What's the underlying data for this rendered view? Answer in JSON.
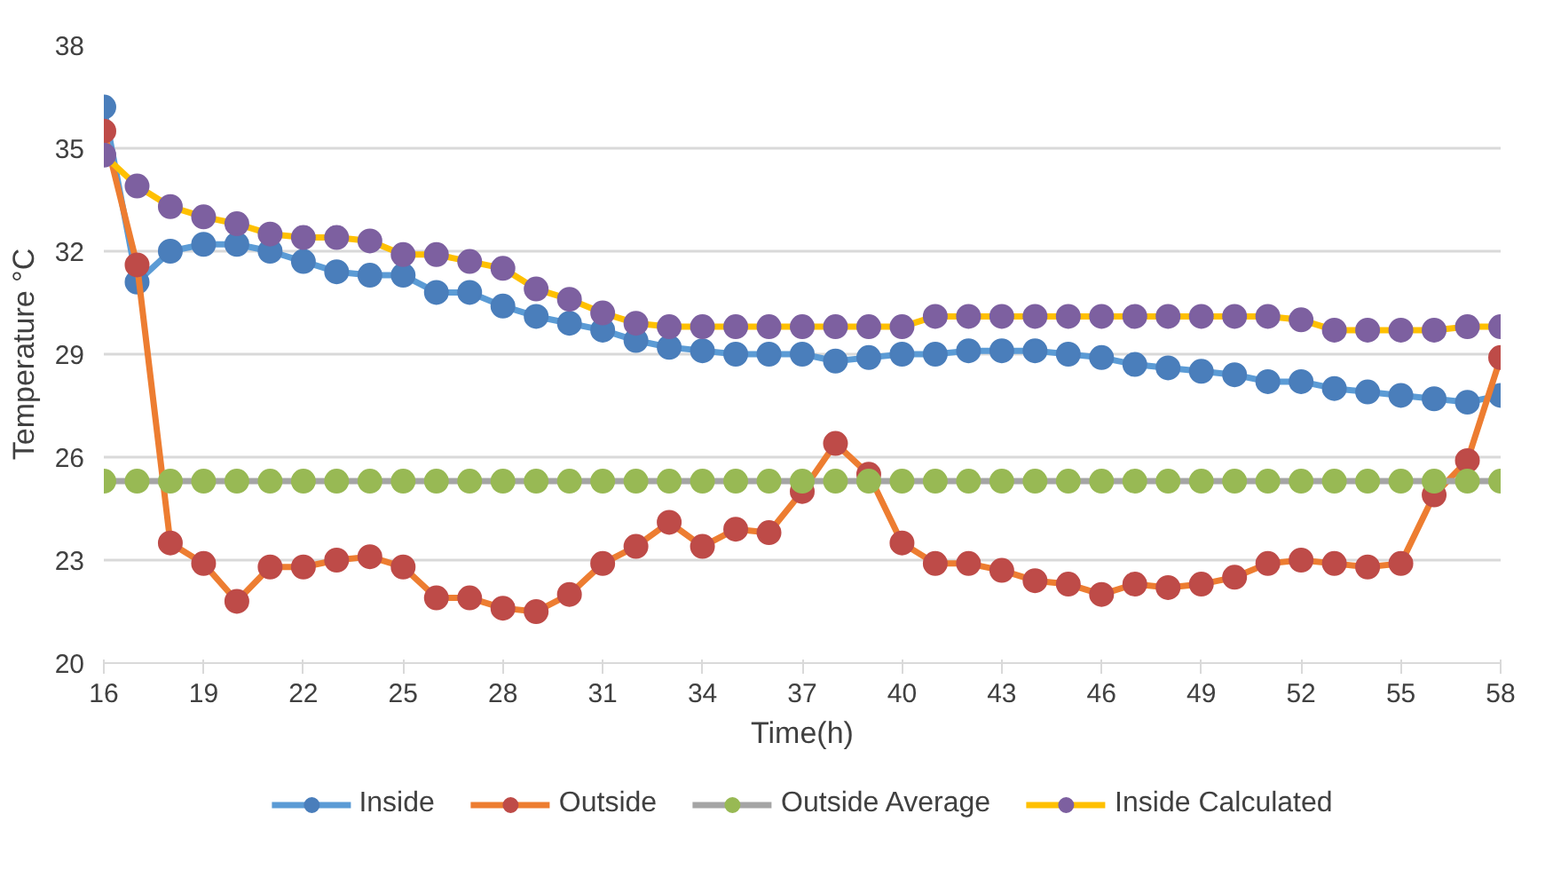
{
  "chart_data": {
    "type": "line",
    "xlabel": "Time(h)",
    "ylabel": "Temperature °C",
    "x": [
      16,
      17,
      18,
      19,
      20,
      21,
      22,
      23,
      24,
      25,
      26,
      27,
      28,
      29,
      30,
      31,
      32,
      33,
      34,
      35,
      36,
      37,
      38,
      39,
      40,
      41,
      42,
      43,
      44,
      45,
      46,
      47,
      48,
      49,
      50,
      51,
      52,
      53,
      54,
      55,
      56,
      57,
      58
    ],
    "xlim": [
      16,
      58
    ],
    "xticks": [
      16,
      19,
      22,
      25,
      28,
      31,
      34,
      37,
      40,
      43,
      46,
      49,
      52,
      55,
      58
    ],
    "ylim": [
      20,
      38
    ],
    "yticks": [
      20,
      23,
      26,
      29,
      32,
      35,
      38
    ],
    "grid": "y",
    "legend": "bottom",
    "marker": "circle",
    "line_style": "solid",
    "series": [
      {
        "name": "Inside",
        "color": "#5b9bd5",
        "colors": [
          "#4a7ebb",
          "#4a7ebb",
          "#4a7ebb",
          "#4a7ebb",
          "#4a7ebb",
          "#4a7ebb",
          "#4a7ebb",
          "#4a7ebb",
          "#4a7ebb",
          "#4a7ebb",
          "#4a7ebb",
          "#4a7ebb",
          "#4a7ebb",
          "#4a7ebb",
          "#4a7ebb",
          "#4a7ebb",
          "#4a7ebb",
          "#4a7ebb",
          "#4a7ebb",
          "#4a7ebb",
          "#4a7ebb",
          "#4a7ebb",
          "#4a7ebb",
          "#4a7ebb",
          "#4a7ebb",
          "#4a7ebb",
          "#4a7ebb",
          "#4a7ebb",
          "#4a7ebb",
          "#4a7ebb",
          "#4a7ebb",
          "#4a7ebb",
          "#4a7ebb",
          "#4a7ebb",
          "#4a7ebb",
          "#4a7ebb",
          "#4a7ebb",
          "#4a7ebb",
          "#4a7ebb",
          "#4a7ebb",
          "#4a7ebb",
          "#4a7ebb",
          "#4a7ebb"
        ],
        "values": [
          36.2,
          31.1,
          32.0,
          32.2,
          32.2,
          32.0,
          31.7,
          31.4,
          31.3,
          31.3,
          30.8,
          30.8,
          30.4,
          30.1,
          29.9,
          29.7,
          29.4,
          29.2,
          29.1,
          29.0,
          29.0,
          29.0,
          28.8,
          28.9,
          29.0,
          29.0,
          29.1,
          29.1,
          29.1,
          29.0,
          28.9,
          28.7,
          28.6,
          28.5,
          28.4,
          28.2,
          28.2,
          28.0,
          27.9,
          27.8,
          27.7,
          27.6,
          27.8
        ]
      },
      {
        "name": "Outside",
        "color": "#ed7d31",
        "colors": [
          "#be4b48",
          "#be4b48",
          "#be4b48",
          "#be4b48",
          "#be4b48",
          "#be4b48",
          "#be4b48",
          "#be4b48",
          "#be4b48",
          "#be4b48",
          "#be4b48",
          "#be4b48",
          "#be4b48",
          "#be4b48",
          "#be4b48",
          "#be4b48",
          "#be4b48",
          "#be4b48",
          "#be4b48",
          "#be4b48",
          "#be4b48",
          "#be4b48",
          "#be4b48",
          "#be4b48",
          "#be4b48",
          "#be4b48",
          "#be4b48",
          "#be4b48",
          "#be4b48",
          "#be4b48",
          "#be4b48",
          "#be4b48",
          "#be4b48",
          "#be4b48",
          "#be4b48",
          "#be4b48",
          "#be4b48",
          "#be4b48",
          "#be4b48",
          "#be4b48",
          "#be4b48",
          "#be4b48",
          "#be4b48"
        ],
        "values": [
          35.5,
          31.6,
          23.5,
          22.9,
          21.8,
          22.8,
          22.8,
          23.0,
          23.1,
          22.8,
          21.9,
          21.9,
          21.6,
          21.5,
          22.0,
          22.9,
          23.4,
          24.1,
          23.4,
          23.9,
          23.8,
          25.0,
          26.4,
          25.5,
          23.5,
          22.9,
          22.9,
          22.7,
          22.4,
          22.3,
          22.0,
          22.3,
          22.2,
          22.3,
          22.5,
          22.9,
          23.0,
          22.9,
          22.8,
          22.9,
          24.9,
          25.9,
          28.9
        ]
      },
      {
        "name": "Outside Average",
        "color": "#a5a5a5",
        "colors": [
          "#98b954",
          "#98b954",
          "#98b954",
          "#98b954",
          "#98b954",
          "#98b954",
          "#98b954",
          "#98b954",
          "#98b954",
          "#98b954",
          "#98b954",
          "#98b954",
          "#98b954",
          "#98b954",
          "#98b954",
          "#98b954",
          "#98b954",
          "#98b954",
          "#98b954",
          "#98b954",
          "#98b954",
          "#98b954",
          "#98b954",
          "#98b954",
          "#98b954",
          "#98b954",
          "#98b954",
          "#98b954",
          "#98b954",
          "#98b954",
          "#98b954",
          "#98b954",
          "#98b954",
          "#98b954",
          "#98b954",
          "#98b954",
          "#98b954",
          "#98b954",
          "#98b954",
          "#98b954",
          "#98b954",
          "#98b954",
          "#98b954"
        ],
        "values": [
          25.3,
          25.3,
          25.3,
          25.3,
          25.3,
          25.3,
          25.3,
          25.3,
          25.3,
          25.3,
          25.3,
          25.3,
          25.3,
          25.3,
          25.3,
          25.3,
          25.3,
          25.3,
          25.3,
          25.3,
          25.3,
          25.3,
          25.3,
          25.3,
          25.3,
          25.3,
          25.3,
          25.3,
          25.3,
          25.3,
          25.3,
          25.3,
          25.3,
          25.3,
          25.3,
          25.3,
          25.3,
          25.3,
          25.3,
          25.3,
          25.3,
          25.3,
          25.3
        ]
      },
      {
        "name": "Inside Calculated",
        "color": "#ffc000",
        "colors": [
          "#7d60a0",
          "#7d60a0",
          "#7d60a0",
          "#7d60a0",
          "#7d60a0",
          "#7d60a0",
          "#7d60a0",
          "#7d60a0",
          "#7d60a0",
          "#7d60a0",
          "#7d60a0",
          "#7d60a0",
          "#7d60a0",
          "#7d60a0",
          "#7d60a0",
          "#7d60a0",
          "#7d60a0",
          "#7d60a0",
          "#7d60a0",
          "#7d60a0",
          "#7d60a0",
          "#7d60a0",
          "#7d60a0",
          "#7d60a0",
          "#7d60a0",
          "#7d60a0",
          "#7d60a0",
          "#7d60a0",
          "#7d60a0",
          "#7d60a0",
          "#7d60a0",
          "#7d60a0",
          "#7d60a0",
          "#7d60a0",
          "#7d60a0",
          "#7d60a0",
          "#7d60a0",
          "#7d60a0",
          "#7d60a0",
          "#7d60a0",
          "#7d60a0",
          "#7d60a0",
          "#7d60a0"
        ],
        "values": [
          34.8,
          33.9,
          33.3,
          33.0,
          32.8,
          32.5,
          32.4,
          32.4,
          32.3,
          31.9,
          31.9,
          31.7,
          31.5,
          30.9,
          30.6,
          30.2,
          29.9,
          29.8,
          29.8,
          29.8,
          29.8,
          29.8,
          29.8,
          29.8,
          29.8,
          30.1,
          30.1,
          30.1,
          30.1,
          30.1,
          30.1,
          30.1,
          30.1,
          30.1,
          30.1,
          30.1,
          30.0,
          29.7,
          29.7,
          29.7,
          29.7,
          29.8,
          29.8
        ]
      }
    ]
  }
}
